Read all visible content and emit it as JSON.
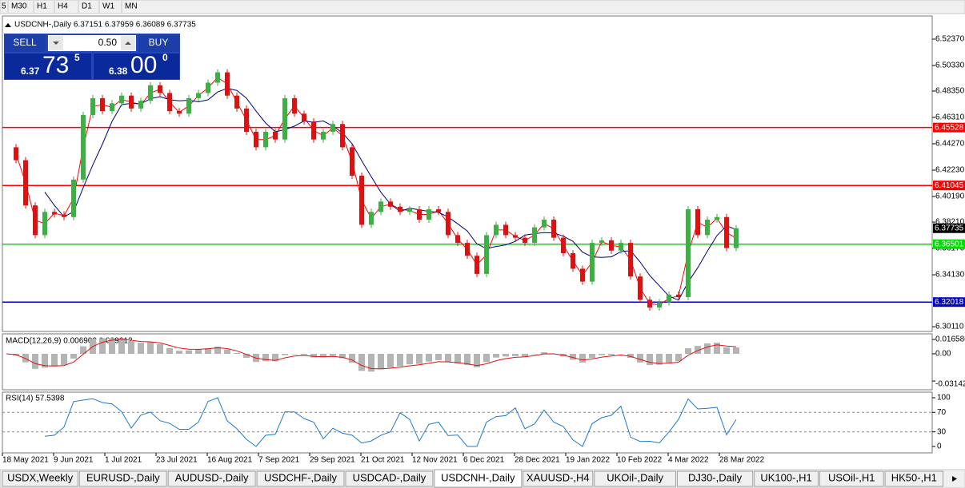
{
  "toolbar": {
    "timeframes": [
      "5",
      "M30",
      "H1",
      "H4",
      "D1",
      "W1",
      "MN"
    ]
  },
  "chart_data": {
    "type": "candlestick",
    "title": "USDCNH-,Daily 6.37151 6.37959 6.36089 6.37735",
    "closes": [
      6.44,
      6.43,
      6.395,
      6.372,
      6.39,
      6.388,
      6.386,
      6.415,
      6.465,
      6.478,
      6.468,
      6.474,
      6.48,
      6.47,
      6.476,
      6.488,
      6.482,
      6.468,
      6.466,
      6.478,
      6.482,
      6.49,
      6.498,
      6.48,
      6.47,
      6.452,
      6.44,
      6.452,
      6.446,
      6.478,
      6.466,
      6.46,
      6.446,
      6.452,
      6.458,
      6.44,
      6.418,
      6.38,
      6.39,
      6.398,
      6.394,
      6.39,
      6.392,
      6.384,
      6.392,
      6.39,
      6.372,
      6.366,
      6.356,
      6.342,
      6.372,
      6.38,
      6.372,
      6.37,
      6.366,
      6.378,
      6.384,
      6.37,
      6.358,
      6.346,
      6.336,
      6.366,
      6.368,
      6.36,
      6.366,
      6.34,
      6.322,
      6.316,
      6.32,
      6.326,
      6.324,
      6.392,
      6.372,
      6.384,
      6.386,
      6.362,
      6.37735
    ],
    "up_color": "#3cb043",
    "down_color": "#e01010",
    "ylim": [
      6.29744,
      6.54163
    ],
    "yticks": [
      {
        "value": 6.5237,
        "label": "6.52370"
      },
      {
        "value": 6.5033,
        "label": "6.50330"
      },
      {
        "value": 6.4835,
        "label": "6.48350"
      },
      {
        "value": 6.4631,
        "label": "6.46310"
      },
      {
        "value": 6.4427,
        "label": "6.44270"
      },
      {
        "value": 6.4223,
        "label": "6.42230"
      },
      {
        "value": 6.4019,
        "label": "6.40190"
      },
      {
        "value": 6.3821,
        "label": "6.38210"
      },
      {
        "value": 6.3617,
        "label": "6.36170"
      },
      {
        "value": 6.3413,
        "label": "6.34130"
      },
      {
        "value": 6.3011,
        "label": "6.30110"
      }
    ],
    "levels": [
      {
        "value": 6.45528,
        "color": "#ff0000"
      },
      {
        "value": 6.41045,
        "color": "#ff0000"
      },
      {
        "value": 6.36501,
        "color": "#00dd00"
      },
      {
        "value": 6.32018,
        "color": "#0000cc"
      }
    ],
    "current_price": 6.37735,
    "x_labels": [
      "18 May 2021",
      "9 Jun 2021",
      "1 Jul 2021",
      "23 Jul 2021",
      "16 Aug 2021",
      "7 Sep 2021",
      "29 Sep 2021",
      "21 Oct 2021",
      "12 Nov 2021",
      "6 Dec 2021",
      "28 Dec 2021",
      "19 Jan 2022",
      "10 Feb 2022",
      "4 Mar 2022",
      "28 Mar 2022"
    ]
  },
  "trade_panel": {
    "sell": "SELL",
    "buy": "BUY",
    "lot": "0.50",
    "sell_price": {
      "big": "6.37",
      "main": "73",
      "small": "5"
    },
    "buy_price": {
      "big": "6.38",
      "main": "00",
      "small": "0"
    }
  },
  "macd": {
    "title": "MACD(12,26,9) 0.006902 0.009212",
    "ylim": [
      -0.04147,
      0.02304
    ],
    "yticks": [
      0.016586,
      {
        "value": 0,
        "label": "0.00"
      },
      -0.03142
    ]
  },
  "rsi": {
    "title": "RSI(14) 57.5398",
    "ylim": [
      0,
      100
    ],
    "yticks": [
      100,
      70,
      30,
      0
    ]
  },
  "tabs": [
    "USDX,Weekly",
    "EURUSD-,Daily",
    "AUDUSD-,Daily",
    "USDCHF-,Daily",
    "USDCAD-,Daily",
    "USDCNH-,Daily",
    "XAUUSD-,H4",
    "UKOil-,Daily",
    "DJ30-,Daily",
    "UK100-,H1",
    "USOil-,H1",
    "HK50-,H1"
  ],
  "active_tab": 5
}
